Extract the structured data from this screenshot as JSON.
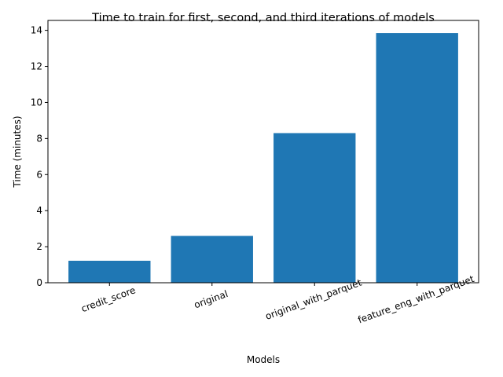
{
  "chart_data": {
    "type": "bar",
    "title": "Time to train for first, second, and third iterations of models",
    "xlabel": "Models",
    "ylabel": "Time (minutes)",
    "categories": [
      "credit_score",
      "original",
      "original_with_parquet",
      "feature_eng_with_parquet"
    ],
    "values": [
      1.22,
      2.6,
      8.3,
      13.85
    ],
    "ylim": [
      0,
      14.55
    ],
    "yticks": [
      0,
      2,
      4,
      6,
      8,
      10,
      12,
      14
    ],
    "ytick_labels": [
      "0",
      "2",
      "4",
      "6",
      "8",
      "10",
      "12",
      "14"
    ],
    "xtick_rotation_deg": 20,
    "bar_color": "#1f77b4",
    "grid": false,
    "legend": "none"
  }
}
